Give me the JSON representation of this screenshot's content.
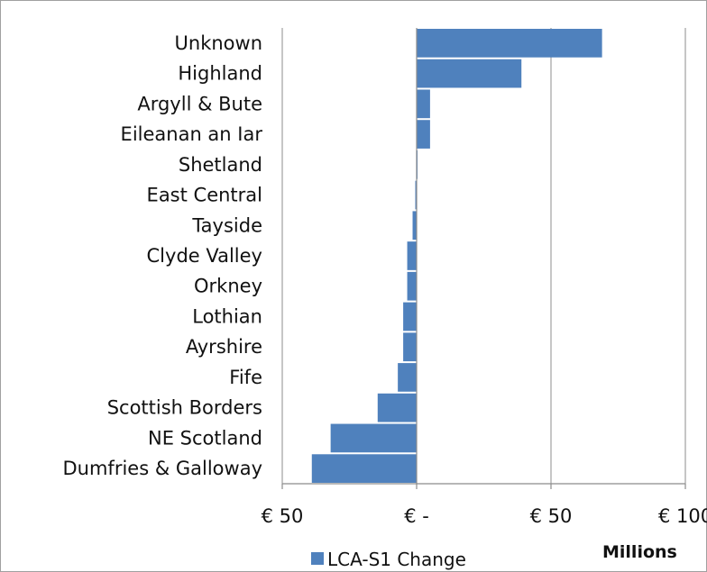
{
  "chart_data": {
    "type": "bar",
    "orientation": "horizontal",
    "categories": [
      "Unknown",
      "Highland",
      "Argyll & Bute",
      "Eileanan an Iar",
      "Shetland",
      "East Central",
      "Tayside",
      "Clyde Valley",
      "Orkney",
      "Lothian",
      "Ayrshire",
      "Fife",
      "Scottish Borders",
      "NE Scotland",
      "Dumfries & Galloway"
    ],
    "series": [
      {
        "name": "LCA-S1 Change",
        "color": "#4F81BD",
        "values": [
          69,
          39,
          5,
          5,
          0,
          -0.5,
          -1.5,
          -3.5,
          -3.5,
          -5,
          -5,
          -7,
          -14.5,
          -32,
          -39
        ]
      }
    ],
    "xlim": [
      -50,
      100
    ],
    "xticks": [
      -50,
      0,
      50,
      100
    ],
    "xtick_labels": [
      "€ 50",
      "€ -",
      "€ 50",
      "€ 100"
    ],
    "unit_label": "Millions",
    "grid": "vertical major",
    "legend_position": "bottom"
  }
}
